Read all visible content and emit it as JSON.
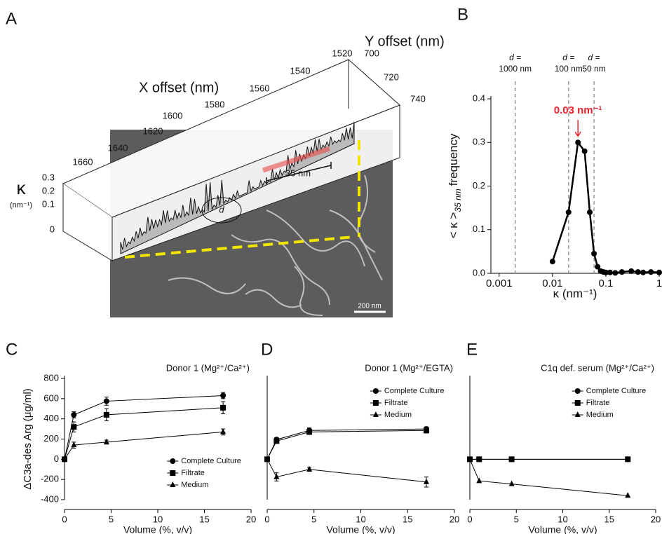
{
  "panel_a": {
    "letter": "A",
    "y_offset_label": "Y offset (nm)",
    "x_offset_label": "X offset (nm)",
    "x_offset_ticks": [
      1520,
      1540,
      1560,
      1580,
      1600,
      1620,
      1640,
      1660
    ],
    "y_offset_ticks": [
      700,
      720,
      740
    ],
    "kappa_label": "κ",
    "kappa_unit": "(nm⁻¹)",
    "kappa_ticks": [
      0.3,
      0.2,
      0.1,
      0
    ],
    "span_label": "35 nm",
    "d_label": "d",
    "scale_bar": "200 nm"
  },
  "chart_data": [
    {
      "type": "line",
      "panel": "B",
      "xscale": "log",
      "x": [
        0.01,
        0.02,
        0.03,
        0.04,
        0.05,
        0.06,
        0.07,
        0.08,
        0.09,
        0.1,
        0.12,
        0.15,
        0.2,
        0.3,
        0.4,
        0.5,
        0.7,
        1
      ],
      "values": [
        0.027,
        0.14,
        0.3,
        0.28,
        0.14,
        0.045,
        0.015,
        0.005,
        0.003,
        0.002,
        0.002,
        0.001,
        0.003,
        0.005,
        0.003,
        0.002,
        0.003,
        0.002
      ],
      "color": "#000000",
      "xlim": [
        0.0007,
        1
      ],
      "xticks": [
        0.001,
        0.01,
        0.1,
        1
      ],
      "ylim": [
        0,
        0.4
      ],
      "yticks": [
        {
          "value": 0,
          "label": "0.0"
        },
        0.1,
        0.2,
        0.3,
        0.4
      ],
      "xlabel": "κ (nm⁻¹)",
      "ylabel": "< κ >",
      "ylabel_sub": "35 nm",
      "ylabel_tail": "frequency",
      "vlines": [
        {
          "value": 0.002,
          "label": [
            "d =",
            "1000 nm"
          ]
        },
        {
          "value": 0.02,
          "label": [
            "d =",
            "100 nm"
          ]
        },
        {
          "value": 0.06,
          "label": [
            "d =",
            "50 nm"
          ]
        }
      ],
      "annotation": {
        "text": "0.03 nm⁻¹",
        "x": 0.03,
        "color": "#e8202a"
      }
    },
    {
      "type": "line",
      "panel": "C",
      "title": "Donor 1 (Mg²⁺/Ca²⁺)",
      "x": [
        0,
        1,
        4.5,
        17
      ],
      "series": [
        {
          "name": "Complete Culture",
          "marker": "circle",
          "color": "#000000",
          "values": [
            0,
            440,
            575,
            630
          ],
          "errors": [
            0,
            30,
            40,
            30
          ]
        },
        {
          "name": "Filtrate",
          "marker": "square",
          "color": "#000000",
          "values": [
            0,
            320,
            440,
            510
          ],
          "errors": [
            0,
            50,
            60,
            60
          ]
        },
        {
          "name": "Medium",
          "marker": "triangle",
          "color": "#000000",
          "values": [
            0,
            140,
            170,
            270
          ],
          "errors": [
            0,
            30,
            20,
            30
          ]
        }
      ],
      "xlim": [
        0,
        20
      ],
      "xticks": [
        0,
        5,
        10,
        15,
        20
      ],
      "ylim": [
        -400,
        800
      ],
      "yticks": [
        -400,
        -200,
        0,
        200,
        400,
        600,
        800
      ],
      "xlabel": "Volume (%, v/v)",
      "ylabel": "ΔC3a-des Arg (μg/ml)",
      "legend": "lower right"
    },
    {
      "type": "line",
      "panel": "D",
      "title": "Donor 1 (Mg²⁺/EGTA)",
      "x": [
        0,
        1,
        4.5,
        17
      ],
      "series": [
        {
          "name": "Complete Culture",
          "marker": "circle",
          "color": "#000000",
          "values": [
            0,
            195,
            285,
            300
          ],
          "errors": [
            0,
            20,
            25,
            20
          ]
        },
        {
          "name": "Filtrate",
          "marker": "square",
          "color": "#000000",
          "values": [
            0,
            180,
            270,
            285
          ],
          "errors": [
            0,
            20,
            25,
            25
          ]
        },
        {
          "name": "Medium",
          "marker": "triangle",
          "color": "#000000",
          "values": [
            0,
            -175,
            -100,
            -225
          ],
          "errors": [
            0,
            40,
            20,
            50
          ]
        }
      ],
      "xlim": [
        0,
        20
      ],
      "xticks": [
        0,
        5,
        10,
        15,
        20
      ],
      "ylim": [
        -400,
        800
      ],
      "xlabel": "Volume (%, v/v)",
      "legend": "upper right"
    },
    {
      "type": "line",
      "panel": "E",
      "title": "C1q def. serum (Mg²⁺/Ca²⁺)",
      "x": [
        0,
        1,
        4.5,
        17
      ],
      "series": [
        {
          "name": "Complete Culture",
          "marker": "circle",
          "color": "#000000",
          "values": [
            0,
            0,
            0,
            0
          ],
          "errors": [
            0,
            0,
            0,
            0
          ]
        },
        {
          "name": "Filtrate",
          "marker": "square",
          "color": "#000000",
          "values": [
            0,
            0,
            0,
            0
          ],
          "errors": [
            0,
            0,
            0,
            0
          ]
        },
        {
          "name": "Medium",
          "marker": "triangle",
          "color": "#000000",
          "values": [
            0,
            -215,
            -245,
            -360
          ],
          "errors": [
            0,
            0,
            0,
            0
          ]
        }
      ],
      "xlim": [
        0,
        20
      ],
      "xticks": [
        0,
        5,
        10,
        15,
        20
      ],
      "ylim": [
        -400,
        800
      ],
      "xlabel": "Volume (%, v/v)",
      "legend": "upper right"
    }
  ]
}
